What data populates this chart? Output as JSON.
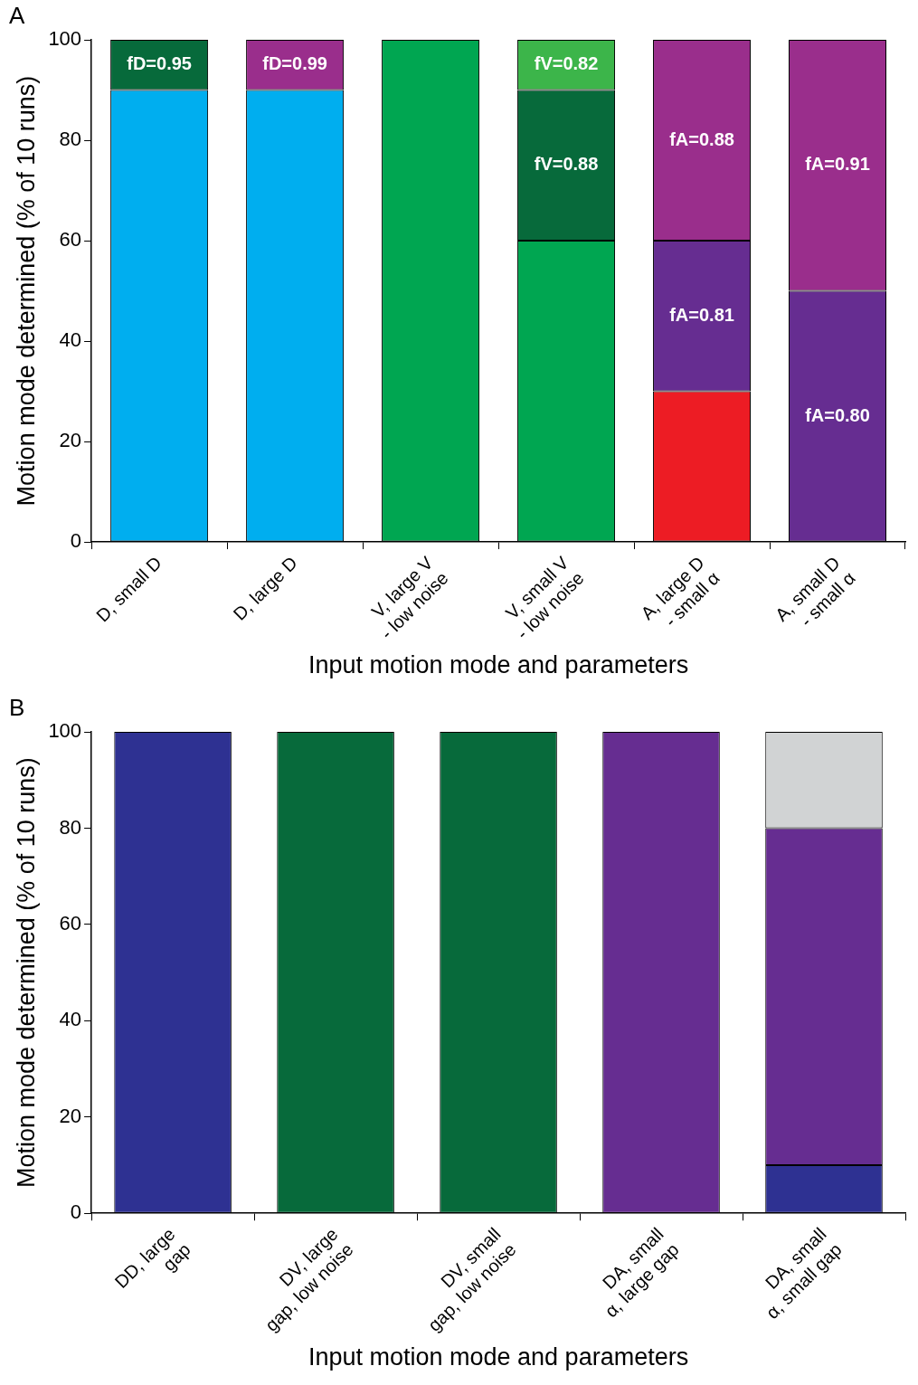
{
  "chart_data": [
    {
      "type": "bar",
      "stacked": true,
      "xlabel": "Input motion mode and parameters",
      "ylabel": "Motion mode determined (% of 10 runs)",
      "annotations": [
        "A",
        "fD=0.95",
        "fD=0.99",
        "fV=0.82",
        "fV=0.88",
        "fA=0.88",
        "fA=0.81",
        "fA=0.91",
        "fA=0.80"
      ],
      "categories": [
        "D, small D",
        "D, large D",
        "V, large V\n- low noise",
        "V, small V\n- low noise",
        "A, large D\n- small α",
        "A, small D\n- small α"
      ],
      "ylim": [
        0,
        100
      ],
      "yticks": [
        0,
        20,
        40,
        60,
        80,
        100
      ],
      "grid": false,
      "series": [
        {
          "color": "#00aeef",
          "values": [
            90,
            90,
            0,
            0,
            0,
            0
          ]
        },
        {
          "color": "#00a651",
          "values": [
            0,
            0,
            100,
            60,
            0,
            0
          ]
        },
        {
          "color": "#ed1c24",
          "values": [
            0,
            0,
            0,
            0,
            30,
            0
          ]
        },
        {
          "color": "#662d91",
          "values": [
            0,
            0,
            0,
            0,
            30,
            50
          ]
        },
        {
          "color": "#076a3b",
          "values": [
            10,
            0,
            0,
            30,
            0,
            0
          ]
        },
        {
          "color": "#3cb54a",
          "values": [
            0,
            0,
            0,
            10,
            0,
            0
          ]
        },
        {
          "color": "#9a2e8c",
          "values": [
            0,
            10,
            0,
            0,
            40,
            50
          ]
        }
      ]
    },
    {
      "type": "bar",
      "stacked": true,
      "annotations": [
        "B"
      ],
      "xlabel": "Input motion mode and parameters",
      "ylabel": "Motion mode determined (% of 10 runs)",
      "categories": [
        "DD, large\ngap",
        "DV, large\ngap, low noise",
        "DV, small\ngap, low noise",
        "DA, small\nα, large gap",
        "DA, small\nα, small gap"
      ],
      "ylim": [
        0,
        100
      ],
      "yticks": [
        0,
        20,
        40,
        60,
        80,
        100
      ],
      "grid": false,
      "series": [
        {
          "color": "#2e3192",
          "values": [
            100,
            0,
            0,
            0,
            10
          ]
        },
        {
          "color": "#076a3b",
          "values": [
            0,
            100,
            100,
            0,
            0
          ]
        },
        {
          "color": "#662d91",
          "values": [
            0,
            0,
            0,
            100,
            70
          ]
        },
        {
          "color": "#d1d3d4",
          "values": [
            0,
            0,
            0,
            0,
            20
          ]
        }
      ]
    }
  ]
}
